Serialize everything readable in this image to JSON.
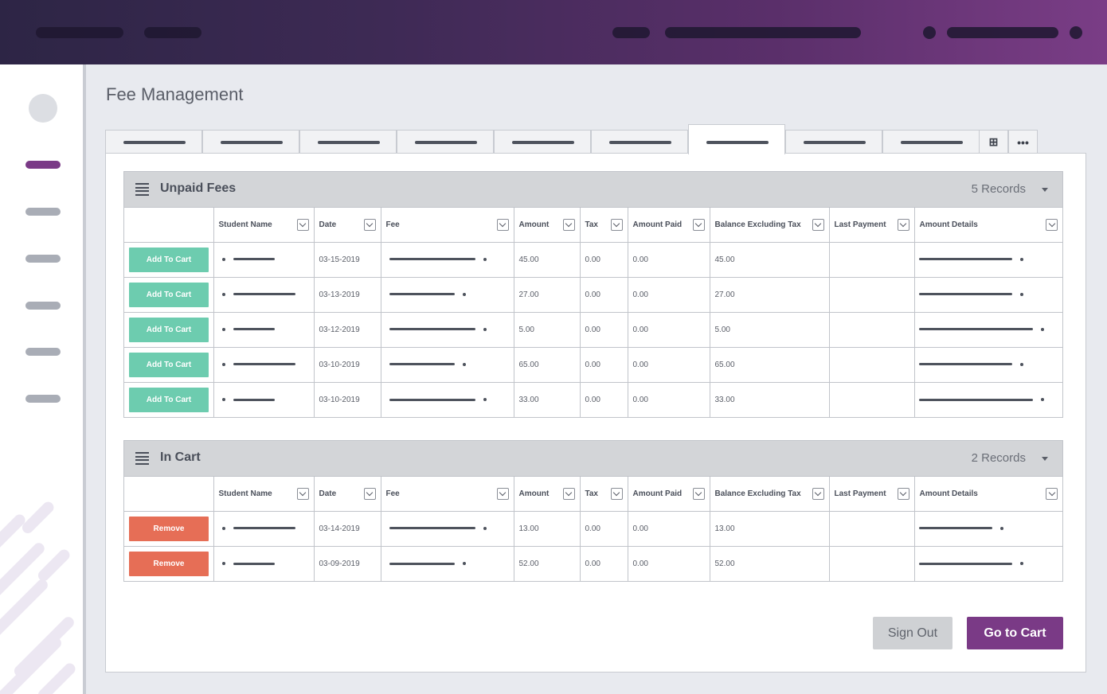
{
  "page": {
    "title": "Fee Management"
  },
  "tabs": {
    "count": 9,
    "active_index": 6,
    "icons": [
      "plus-square-icon",
      "more-horizontal-icon"
    ],
    "add_glyph": "⊞",
    "more_glyph": "•••"
  },
  "colors": {
    "accent": "#7a3a86",
    "add_button": "#6dccaf",
    "remove_button": "#e66e56",
    "header_bg": "#d3d5d8"
  },
  "columns": [
    "Student Name",
    "Date",
    "Fee",
    "Amount",
    "Tax",
    "Amount Paid",
    "Balance Excluding Tax",
    "Last Payment",
    "Amount Details"
  ],
  "unpaid": {
    "title": "Unpaid Fees",
    "records": "5 Records",
    "action_label": "Add To Cart",
    "rows": [
      {
        "date": "03-15-2019",
        "amount": "45.00",
        "tax": "0.00",
        "paid": "0.00",
        "balance": "45.00"
      },
      {
        "date": "03-13-2019",
        "amount": "27.00",
        "tax": "0.00",
        "paid": "0.00",
        "balance": "27.00"
      },
      {
        "date": "03-12-2019",
        "amount": "5.00",
        "tax": "0.00",
        "paid": "0.00",
        "balance": "5.00"
      },
      {
        "date": "03-10-2019",
        "amount": "65.00",
        "tax": "0.00",
        "paid": "0.00",
        "balance": "65.00"
      },
      {
        "date": "03-10-2019",
        "amount": "33.00",
        "tax": "0.00",
        "paid": "0.00",
        "balance": "33.00"
      }
    ]
  },
  "cart": {
    "title": "In Cart",
    "records": "2 Records",
    "action_label": "Remove",
    "rows": [
      {
        "date": "03-14-2019",
        "amount": "13.00",
        "tax": "0.00",
        "paid": "0.00",
        "balance": "13.00"
      },
      {
        "date": "03-09-2019",
        "amount": "52.00",
        "tax": "0.00",
        "paid": "0.00",
        "balance": "52.00"
      }
    ]
  },
  "footer": {
    "sign_out": "Sign Out",
    "go_to_cart": "Go to Cart"
  }
}
